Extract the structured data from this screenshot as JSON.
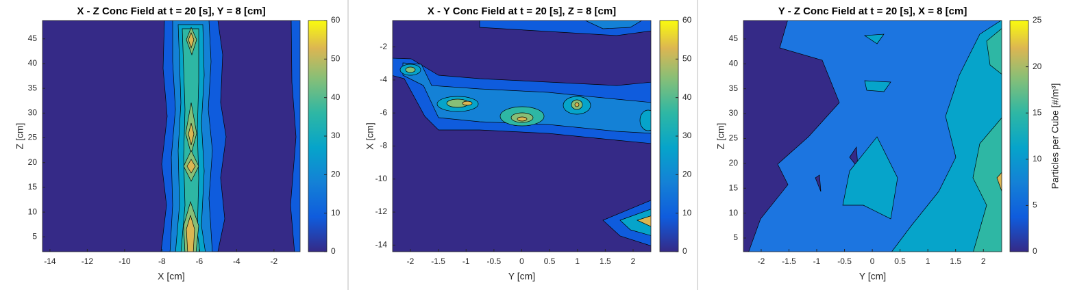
{
  "chart_data": [
    {
      "type": "contour",
      "title": "X - Z Conc Field at t = 20 [s], Y = 8 [cm]",
      "xlabel": "X [cm]",
      "ylabel": "Z [cm]",
      "xlim": [
        -14.4,
        -0.6
      ],
      "xticks": [
        -14,
        -12,
        -10,
        -8,
        -6,
        -4,
        -2
      ],
      "ylim": [
        2,
        48.7
      ],
      "yticks": [
        5,
        10,
        15,
        20,
        25,
        30,
        35,
        40,
        45
      ],
      "colorbar": {
        "lim": [
          0,
          60
        ],
        "ticks": [
          0,
          10,
          20,
          30,
          40,
          50,
          60
        ]
      }
    },
    {
      "type": "contour",
      "title": "X - Y Conc Field at t = 20 [s], Z = 8 [cm]",
      "xlabel": "Y [cm]",
      "ylabel": "X [cm]",
      "xlim": [
        -2.32,
        2.32
      ],
      "xticks": [
        -2,
        -1.5,
        -1,
        -0.5,
        0,
        0.5,
        1,
        1.5,
        2
      ],
      "ylim": [
        -14.4,
        -0.4
      ],
      "yticks": [
        -14,
        -12,
        -10,
        -8,
        -6,
        -4,
        -2
      ],
      "colorbar": {
        "lim": [
          0,
          60
        ],
        "ticks": [
          0,
          10,
          20,
          30,
          40,
          50,
          60
        ]
      }
    },
    {
      "type": "contour",
      "title": "Y - Z Conc Field at t = 20 [s], X = 8 [cm]",
      "xlabel": "Y [cm]",
      "ylabel": "Z [cm]",
      "xlim": [
        -2.32,
        2.33
      ],
      "xticks": [
        -2,
        -1.5,
        -1,
        -0.5,
        0,
        0.5,
        1,
        1.5,
        2
      ],
      "ylim": [
        2.25,
        48.7
      ],
      "yticks": [
        5,
        10,
        15,
        20,
        25,
        30,
        35,
        40,
        45
      ],
      "colorbar": {
        "lim": [
          0,
          25
        ],
        "ticks": [
          0,
          5,
          10,
          15,
          20,
          25
        ],
        "label": "Particles per Cube [#/m³]"
      }
    }
  ]
}
